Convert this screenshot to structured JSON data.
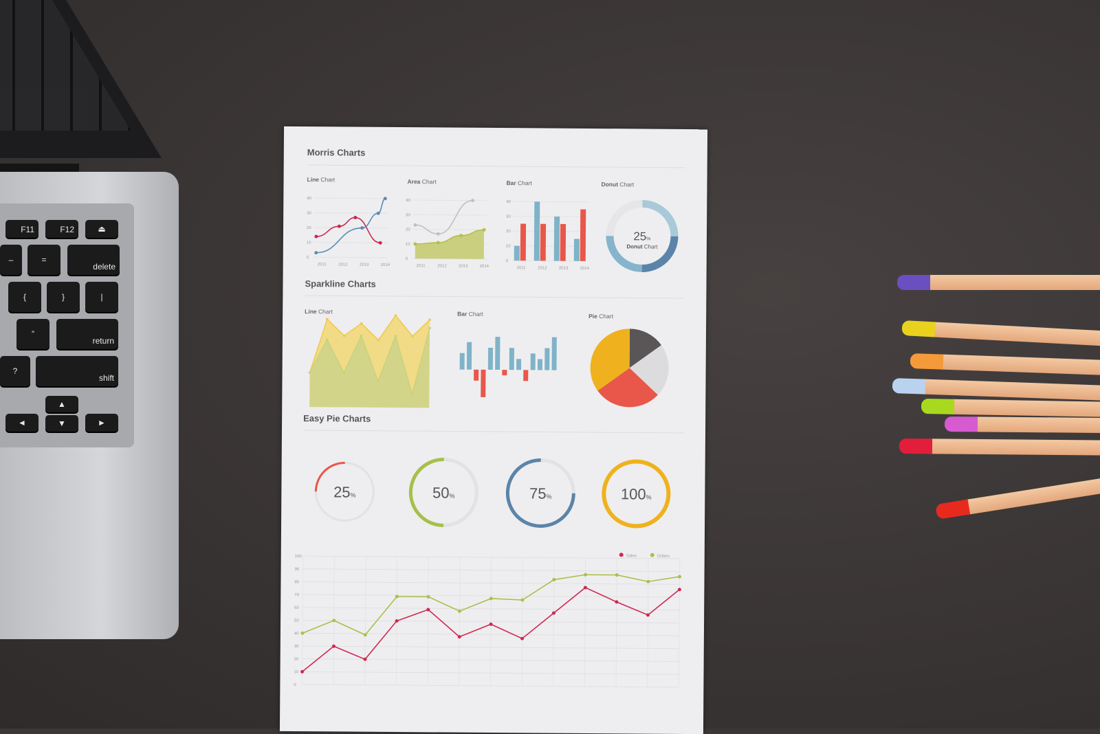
{
  "laptop": {
    "keys": {
      "f11": "F11",
      "f12": "F12",
      "minus": "–",
      "equals": "=",
      "delete": "delete",
      "brace_open": "{",
      "brace_close": "}",
      "pipe": "|",
      "quote": "”",
      "return": "return",
      "question": "?",
      "shift": "shift",
      "eject": "⏏",
      "up": "▲",
      "down": "▼",
      "left": "◄",
      "right": "►"
    }
  },
  "paper": {
    "sections": {
      "morris": "Morris Charts",
      "sparkline": "Sparkline Charts",
      "easy_pie": "Easy Pie Charts"
    },
    "morris_titles": [
      {
        "bold": "Line",
        "rest": " Chart"
      },
      {
        "bold": "Area",
        "rest": " Chart"
      },
      {
        "bold": "Bar",
        "rest": " Chart"
      },
      {
        "bold": "Donut",
        "rest": " Chart"
      }
    ],
    "sparkline_titles": [
      {
        "bold": "Line",
        "rest": " Chart"
      },
      {
        "bold": "Bar",
        "rest": " Chart"
      },
      {
        "bold": "Pie",
        "rest": " Chart"
      }
    ],
    "donut_center": {
      "value": "25",
      "unit": "%",
      "label_bold": "Donut",
      "label_rest": " Chart"
    }
  },
  "chart_data": [
    {
      "type": "line",
      "categories": [
        "2011",
        "2012",
        "2013",
        "2014"
      ],
      "yticks": [
        "0",
        "10",
        "20",
        "30",
        "40"
      ],
      "ylim": [
        0,
        40
      ],
      "series": [
        {
          "color": "#c8284e",
          "x": [
            2011,
            2012,
            2012.7,
            2013.8
          ],
          "values": [
            14,
            21,
            27,
            10
          ]
        },
        {
          "color": "#5b8db5",
          "x": [
            2011,
            2013,
            2013.7,
            2014
          ],
          "values": [
            3,
            20,
            30,
            40
          ]
        }
      ]
    },
    {
      "type": "area",
      "categories": [
        "2011",
        "2012",
        "2013",
        "2014"
      ],
      "yticks": [
        "0",
        "10",
        "20",
        "30",
        "40"
      ],
      "ylim": [
        0,
        40
      ],
      "series": [
        {
          "color": "#c0c0c0",
          "x": [
            2011,
            2012,
            2013.5
          ],
          "values": [
            23,
            17,
            40
          ]
        },
        {
          "color": "#b5c04a",
          "x": [
            2011,
            2012,
            2013,
            2014
          ],
          "values": [
            10,
            11,
            16,
            20
          ]
        }
      ]
    },
    {
      "type": "bar",
      "categories": [
        "2011",
        "2012",
        "2013",
        "2014"
      ],
      "yticks": [
        "0",
        "10",
        "20",
        "30",
        "40"
      ],
      "ylim": [
        0,
        40
      ],
      "series": [
        {
          "color": "#7fb3c8",
          "values": [
            10,
            40,
            30,
            15
          ]
        },
        {
          "color": "#e8574a",
          "values": [
            25,
            25,
            25,
            35
          ]
        }
      ]
    },
    {
      "type": "pie",
      "values": [
        25,
        25,
        25,
        25
      ],
      "colors": [
        "#a9c9d9",
        "#5b84a8",
        "#86b4cc",
        "#e6e6e8"
      ]
    },
    {
      "type": "area",
      "series": [
        {
          "color": "#f1c84b",
          "values": [
            5,
            18,
            14,
            17,
            13,
            19,
            14,
            18
          ]
        },
        {
          "color": "#c8d27a",
          "values": [
            5,
            13,
            5,
            14,
            3,
            14,
            0,
            16
          ]
        }
      ]
    },
    {
      "type": "bar",
      "values": [
        3,
        5,
        -2,
        -5,
        4,
        6,
        -1,
        4,
        2,
        -2,
        3,
        2,
        4,
        6
      ]
    },
    {
      "type": "pie",
      "values": [
        35,
        15,
        22,
        28
      ],
      "colors": [
        "#efb21e",
        "#5a5658",
        "#dcdcde",
        "#e8574a"
      ]
    },
    {
      "type": "pie",
      "labels": [
        "25",
        "50",
        "75",
        "100"
      ],
      "unit": "%",
      "values": [
        25,
        50,
        75,
        100
      ],
      "colors": [
        "#e8574a",
        "#a6c04a",
        "#5b84a8",
        "#efb21e"
      ]
    },
    {
      "type": "line",
      "legend": [
        "Sales",
        "Orders"
      ],
      "legend_position": "top-right",
      "grid": true,
      "ylim": [
        0,
        100
      ],
      "yticks": [
        "0",
        "10",
        "20",
        "30",
        "40",
        "50",
        "60",
        "70",
        "80",
        "90",
        "100"
      ],
      "series": [
        {
          "name": "Sales",
          "color": "#d0284f",
          "values": [
            10,
            30,
            20,
            50,
            59,
            38,
            48,
            37,
            57,
            77,
            66,
            56,
            76
          ]
        },
        {
          "name": "Orders",
          "color": "#a9c04a",
          "values": [
            40,
            50,
            39,
            69,
            69,
            58,
            68,
            67,
            83,
            87,
            87,
            82,
            86
          ]
        }
      ]
    }
  ]
}
